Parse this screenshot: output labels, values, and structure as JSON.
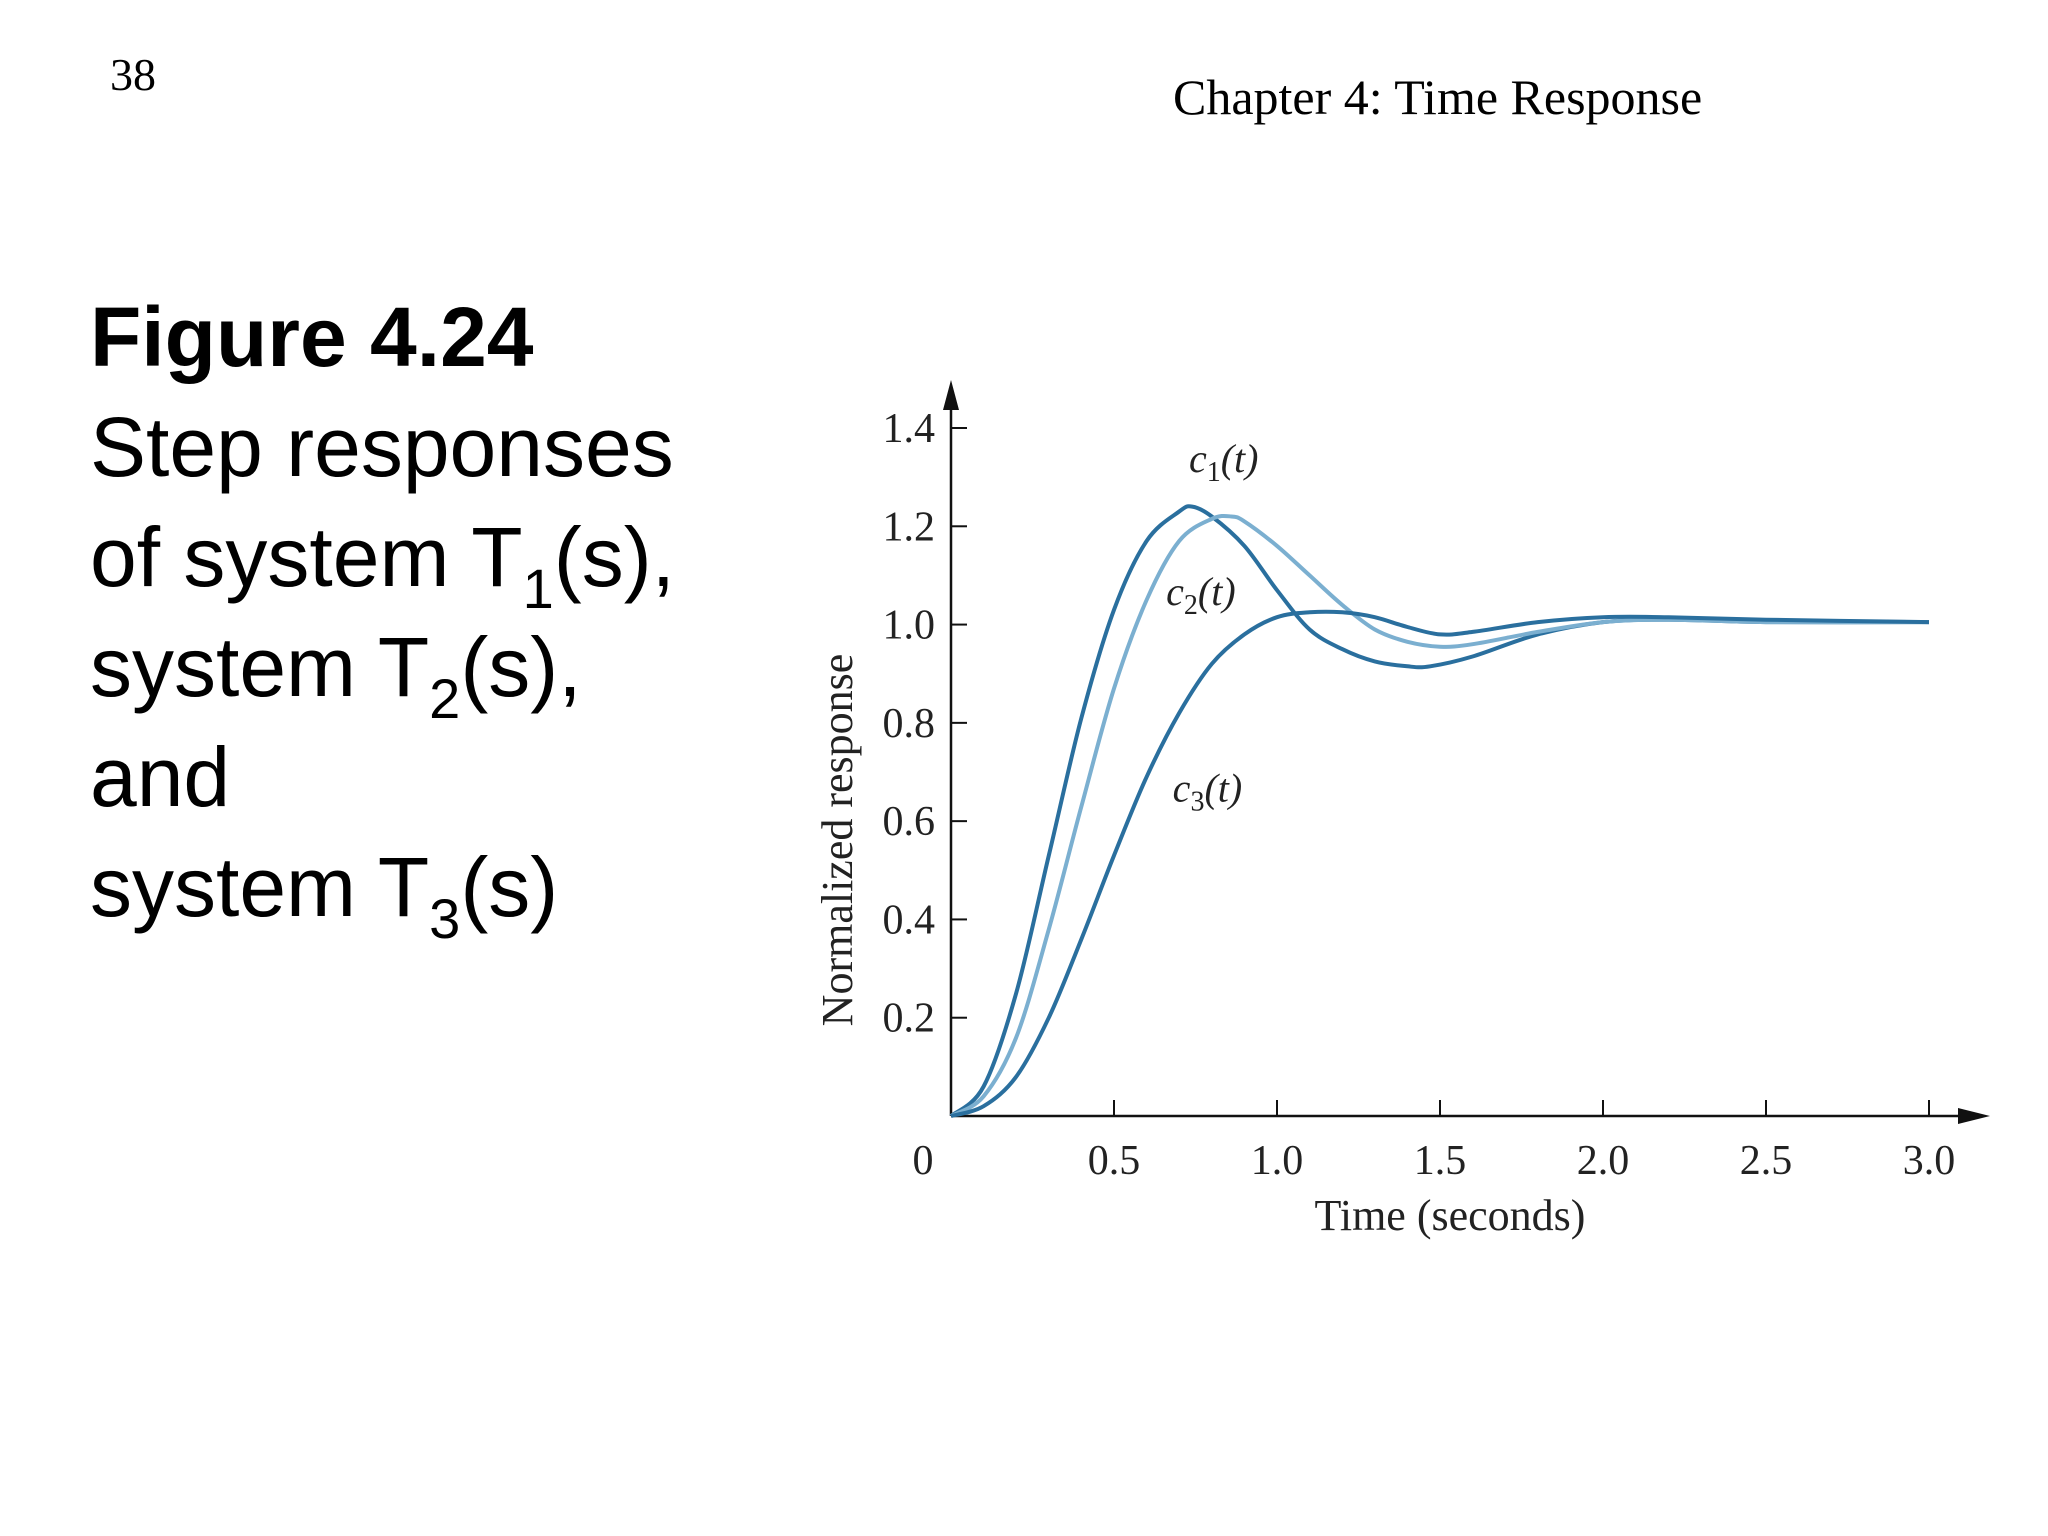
{
  "header": {
    "page_number": "38",
    "chapter_title": "Chapter 4: Time Response"
  },
  "caption": {
    "figure_label": "Figure 4.24",
    "line1": "Step responses",
    "line2_pre": "of system T",
    "line2_sub": "1",
    "line2_post": "(s),",
    "line3_pre": "system T",
    "line3_sub": "2",
    "line3_post": "(s),",
    "line4": "and",
    "line5_pre": "system T",
    "line5_sub": "3",
    "line5_post": "(s)"
  },
  "chart_data": {
    "type": "line",
    "title": "",
    "xlabel": "Time (seconds)",
    "ylabel": "Normalized response",
    "xlim": [
      0,
      3.0
    ],
    "ylim": [
      0,
      1.4
    ],
    "x_ticks": [
      "0",
      "0.5",
      "1.0",
      "1.5",
      "2.0",
      "2.5",
      "3.0"
    ],
    "y_ticks": [
      "0.2",
      "0.4",
      "0.6",
      "0.8",
      "1.0",
      "1.2",
      "1.4"
    ],
    "grid": false,
    "legend": "none",
    "series": [
      {
        "name": "c1(t)",
        "label_base": "c",
        "label_sub": "1",
        "label_arg": "(t)",
        "label_at": [
          0.73,
          1.31
        ],
        "color": "#2a6f9e",
        "x": [
          0,
          0.1,
          0.2,
          0.3,
          0.4,
          0.5,
          0.6,
          0.7,
          0.74,
          0.8,
          0.9,
          1.0,
          1.1,
          1.2,
          1.3,
          1.4,
          1.47,
          1.6,
          1.8,
          2.0,
          2.2,
          2.5,
          3.0
        ],
        "y": [
          0,
          0.06,
          0.25,
          0.53,
          0.81,
          1.03,
          1.17,
          1.23,
          1.24,
          1.22,
          1.16,
          1.07,
          0.99,
          0.95,
          0.925,
          0.915,
          0.915,
          0.935,
          0.98,
          1.005,
          1.01,
          1.005,
          1.005
        ]
      },
      {
        "name": "c2(t)",
        "label_base": "c",
        "label_sub": "2",
        "label_arg": "(t)",
        "label_at": [
          0.66,
          1.04
        ],
        "color": "#7bafd0",
        "x": [
          0,
          0.1,
          0.2,
          0.3,
          0.4,
          0.5,
          0.6,
          0.7,
          0.8,
          0.86,
          0.9,
          1.0,
          1.1,
          1.2,
          1.3,
          1.4,
          1.5,
          1.6,
          1.8,
          2.0,
          2.2,
          2.5,
          3.0
        ],
        "y": [
          0,
          0.04,
          0.16,
          0.38,
          0.63,
          0.87,
          1.05,
          1.17,
          1.215,
          1.22,
          1.21,
          1.16,
          1.1,
          1.04,
          0.99,
          0.965,
          0.955,
          0.96,
          0.985,
          1.005,
          1.01,
          1.005,
          1.005
        ]
      },
      {
        "name": "c3(t)",
        "label_base": "c",
        "label_sub": "3",
        "label_arg": "(t)",
        "label_at": [
          0.68,
          0.64
        ],
        "color": "#2a6f9e",
        "x": [
          0,
          0.1,
          0.2,
          0.3,
          0.4,
          0.5,
          0.6,
          0.7,
          0.8,
          0.9,
          1.0,
          1.1,
          1.2,
          1.3,
          1.4,
          1.5,
          1.6,
          1.8,
          2.0,
          2.2,
          2.5,
          3.0
        ],
        "y": [
          0,
          0.02,
          0.08,
          0.2,
          0.36,
          0.53,
          0.69,
          0.82,
          0.92,
          0.98,
          1.015,
          1.025,
          1.025,
          1.015,
          0.995,
          0.98,
          0.985,
          1.005,
          1.015,
          1.015,
          1.01,
          1.005
        ]
      }
    ]
  }
}
